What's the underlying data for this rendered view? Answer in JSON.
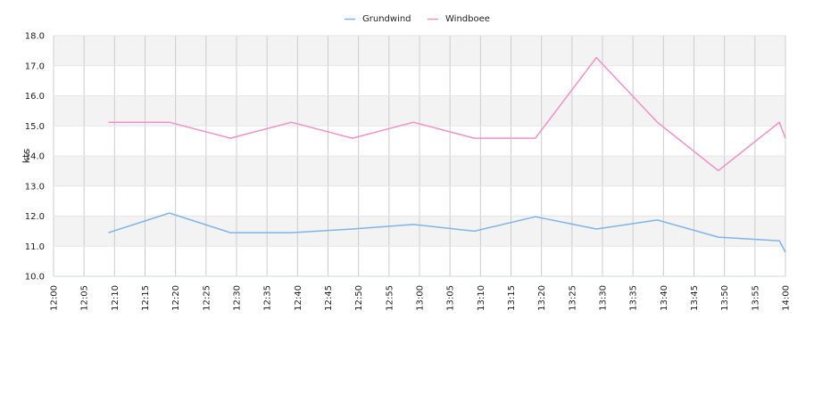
{
  "chart_data": {
    "type": "line",
    "title": "",
    "xlabel": "",
    "ylabel": "kts",
    "ylim": [
      10.0,
      18.0
    ],
    "yticks": [
      "10.0",
      "11.0",
      "12.0",
      "13.0",
      "14.0",
      "15.0",
      "16.0",
      "17.0",
      "18.0"
    ],
    "xlim": [
      "12:00",
      "14:00"
    ],
    "xticks": [
      "12:00",
      "12:05",
      "12:10",
      "12:15",
      "12:20",
      "12:25",
      "12:30",
      "12:35",
      "12:40",
      "12:45",
      "12:50",
      "12:55",
      "13:00",
      "13:05",
      "13:10",
      "13:15",
      "13:20",
      "13:25",
      "13:30",
      "13:35",
      "13:40",
      "13:45",
      "13:50",
      "13:55",
      "14:00"
    ],
    "grid": true,
    "legend_position": "top-center",
    "series": [
      {
        "name": "Grundwind",
        "color": "#7cb5ec",
        "x": [
          "12:09",
          "12:19",
          "12:29",
          "12:39",
          "12:49",
          "12:59",
          "13:09",
          "13:19",
          "13:29",
          "13:39",
          "13:49",
          "13:59",
          "14:00"
        ],
        "values": [
          11.45,
          12.1,
          11.45,
          11.45,
          11.57,
          11.72,
          11.5,
          11.98,
          11.57,
          11.87,
          11.3,
          11.18,
          10.8
        ]
      },
      {
        "name": "Windboee",
        "color": "#f191c6",
        "x": [
          "12:09",
          "12:19",
          "12:29",
          "12:39",
          "12:49",
          "12:59",
          "13:09",
          "13:19",
          "13:29",
          "13:39",
          "13:49",
          "13:59",
          "14:00"
        ],
        "values": [
          15.12,
          15.12,
          14.59,
          15.12,
          14.59,
          15.12,
          14.59,
          14.59,
          17.27,
          15.12,
          13.51,
          15.12,
          14.59
        ]
      }
    ]
  }
}
